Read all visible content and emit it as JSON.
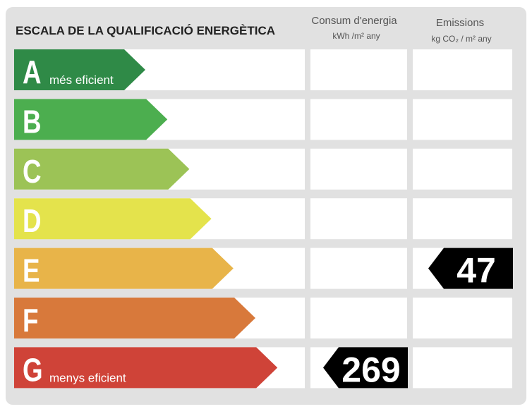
{
  "title": "ESCALA DE LA QUALIFICACIÓ ENERGÈTICA",
  "columns": [
    {
      "title": "Consum d'energia",
      "unit": "kWh /m²  any"
    },
    {
      "title": "Emissions",
      "unit": "kg CO₂ / m²  any"
    }
  ],
  "classes": [
    {
      "letter": "A",
      "label": "més eficient",
      "color": "#2f8a47"
    },
    {
      "letter": "B",
      "label": null,
      "color": "#4cae4f"
    },
    {
      "letter": "C",
      "label": null,
      "color": "#9cc356"
    },
    {
      "letter": "D",
      "label": null,
      "color": "#e4e34c"
    },
    {
      "letter": "E",
      "label": null,
      "color": "#e8b449"
    },
    {
      "letter": "F",
      "label": null,
      "color": "#d8793b"
    },
    {
      "letter": "G",
      "label": "menys eficient",
      "color": "#cf4338"
    }
  ],
  "ratings": [
    {
      "class": "G",
      "value": 269
    },
    {
      "class": "E",
      "value": 47
    }
  ]
}
